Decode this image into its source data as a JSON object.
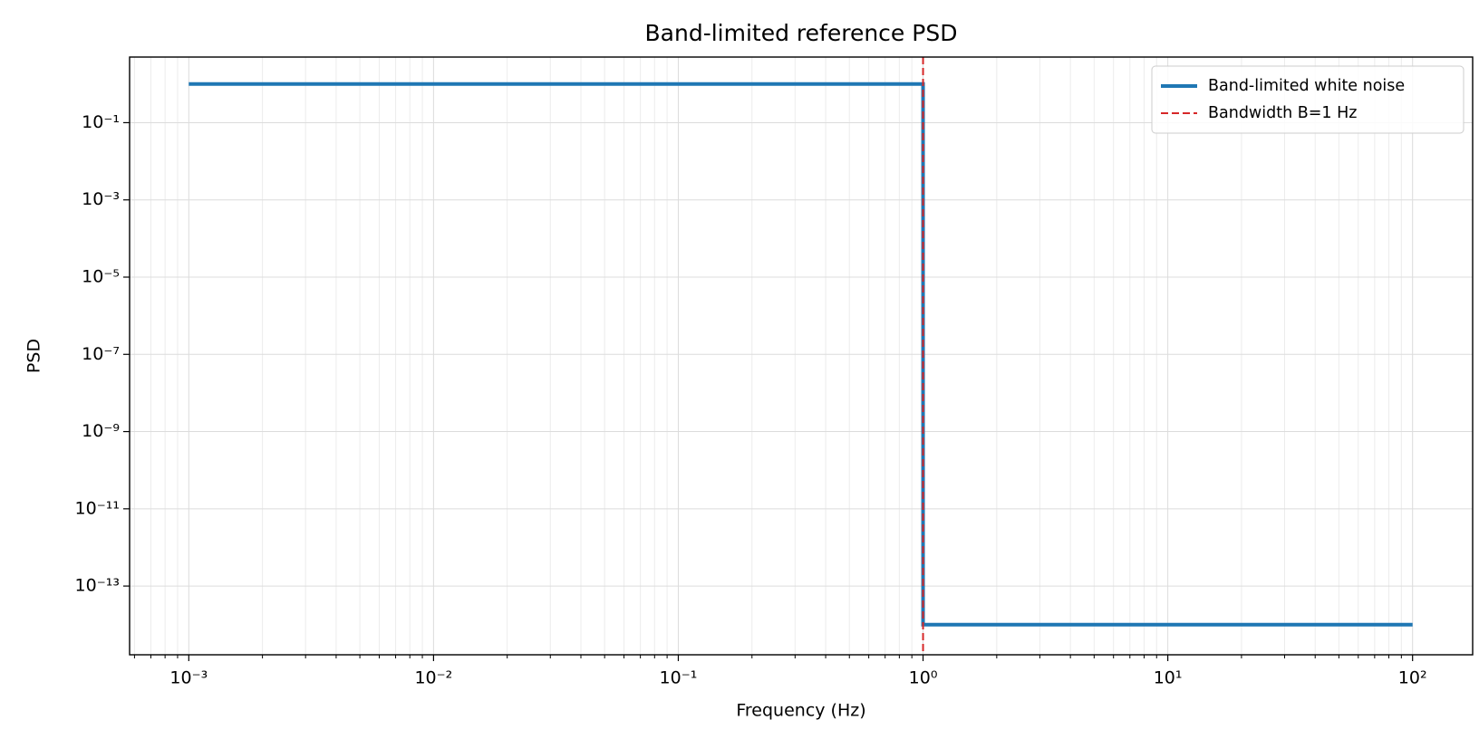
{
  "chart_data": {
    "type": "line",
    "title": "Band-limited reference PSD",
    "x_label": "Frequency (Hz)",
    "y_label": "PSD",
    "log_x": true,
    "log_y": true,
    "xlim": [
      0.000573,
      176
    ],
    "ylim": [
      1.66e-15,
      5.0
    ],
    "xticks": [
      {
        "value": 0.001,
        "label": "10⁻³"
      },
      {
        "value": 0.01,
        "label": "10⁻²"
      },
      {
        "value": 0.1,
        "label": "10⁻¹"
      },
      {
        "value": 1,
        "label": "10⁰"
      },
      {
        "value": 10,
        "label": "10¹"
      },
      {
        "value": 100,
        "label": "10²"
      }
    ],
    "yticks": [
      {
        "value": 0.1,
        "label": "10⁻¹"
      },
      {
        "value": 0.001,
        "label": "10⁻³"
      },
      {
        "value": 1e-05,
        "label": "10⁻⁵"
      },
      {
        "value": 1e-07,
        "label": "10⁻⁷"
      },
      {
        "value": 1e-09,
        "label": "10⁻⁹"
      },
      {
        "value": 1e-11,
        "label": "10⁻¹¹"
      },
      {
        "value": 1e-13,
        "label": "10⁻¹³"
      }
    ],
    "grid": true,
    "x_minor_grid": true,
    "series": [
      {
        "name": "Band-limited white noise",
        "color": "#1f77b4",
        "x": [
          0.001,
          1,
          1,
          100
        ],
        "values": [
          1,
          1,
          1e-14,
          1e-14
        ]
      }
    ],
    "vlines": [
      {
        "name": "Bandwidth B=1 Hz",
        "x": 1,
        "color": "#d62728",
        "style": "dashed"
      }
    ],
    "legend": "upper right"
  }
}
